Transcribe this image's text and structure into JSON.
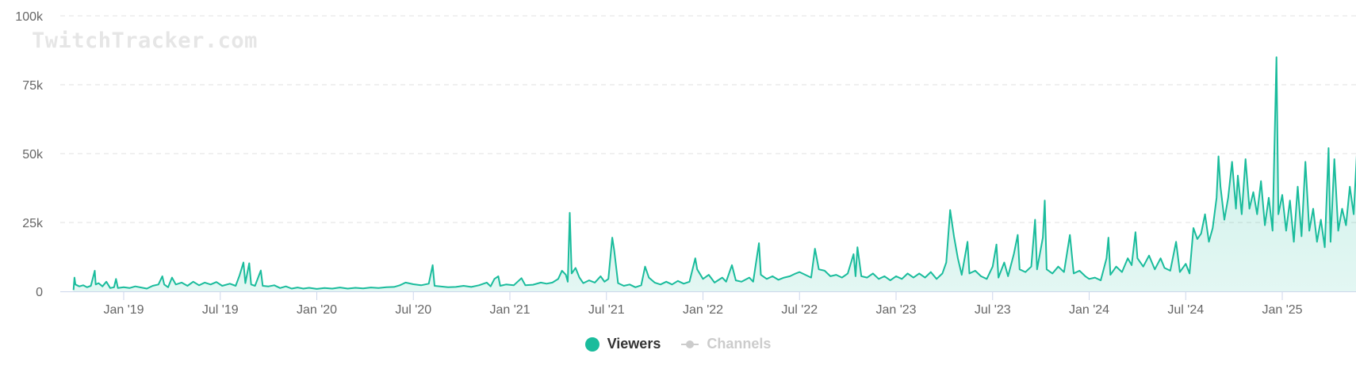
{
  "watermark": "TwitchTracker.com",
  "legend": {
    "items": [
      {
        "label": "Viewers",
        "color": "#1abc9c",
        "visible": true
      },
      {
        "label": "Channels",
        "color": "#cccccc",
        "visible": false
      }
    ]
  },
  "colors": {
    "line": "#1abc9c",
    "fill_top": "rgba(26,188,156,0.25)",
    "fill_bottom": "rgba(26,188,156,0.12)",
    "grid": "#e0e0e0",
    "axis": "#ccd6eb",
    "label": "#666666"
  },
  "chart_data": {
    "type": "area",
    "title": "",
    "xlabel": "",
    "ylabel": "",
    "ylim": [
      0,
      100000
    ],
    "y_ticks": [
      {
        "value": 0,
        "label": "0"
      },
      {
        "value": 25000,
        "label": "25k"
      },
      {
        "value": 50000,
        "label": "50k"
      },
      {
        "value": 75000,
        "label": "75k"
      },
      {
        "value": 100000,
        "label": "100k"
      }
    ],
    "x_ticks": [
      {
        "t": 2019.0,
        "label": "Jan '19"
      },
      {
        "t": 2019.5,
        "label": "Jul '19"
      },
      {
        "t": 2020.0,
        "label": "Jan '20"
      },
      {
        "t": 2020.5,
        "label": "Jul '20"
      },
      {
        "t": 2021.0,
        "label": "Jan '21"
      },
      {
        "t": 2021.5,
        "label": "Jul '21"
      },
      {
        "t": 2022.0,
        "label": "Jan '22"
      },
      {
        "t": 2022.5,
        "label": "Jul '22"
      },
      {
        "t": 2023.0,
        "label": "Jan '23"
      },
      {
        "t": 2023.5,
        "label": "Jul '23"
      },
      {
        "t": 2024.0,
        "label": "Jan '24"
      },
      {
        "t": 2024.5,
        "label": "Jul '24"
      },
      {
        "t": 2025.0,
        "label": "Jan '25"
      }
    ],
    "x_range": [
      2018.55,
      2025.4
    ],
    "grid": true,
    "legend_position": "bottom-center",
    "series": [
      {
        "name": "Viewers",
        "visible": true,
        "points": [
          [
            2018.74,
            500
          ],
          [
            2018.745,
            5000
          ],
          [
            2018.75,
            2500
          ],
          [
            2018.77,
            1800
          ],
          [
            2018.79,
            2200
          ],
          [
            2018.81,
            1500
          ],
          [
            2018.83,
            2000
          ],
          [
            2018.85,
            7500
          ],
          [
            2018.855,
            2500
          ],
          [
            2018.87,
            3000
          ],
          [
            2018.89,
            1800
          ],
          [
            2018.91,
            3500
          ],
          [
            2018.93,
            1200
          ],
          [
            2018.95,
            1500
          ],
          [
            2018.96,
            4500
          ],
          [
            2018.97,
            1200
          ],
          [
            2019.0,
            1500
          ],
          [
            2019.03,
            1200
          ],
          [
            2019.06,
            1800
          ],
          [
            2019.09,
            1400
          ],
          [
            2019.12,
            1000
          ],
          [
            2019.15,
            2000
          ],
          [
            2019.18,
            2500
          ],
          [
            2019.2,
            5500
          ],
          [
            2019.21,
            2500
          ],
          [
            2019.23,
            1500
          ],
          [
            2019.25,
            5000
          ],
          [
            2019.27,
            2500
          ],
          [
            2019.3,
            3200
          ],
          [
            2019.33,
            2000
          ],
          [
            2019.36,
            3500
          ],
          [
            2019.39,
            2200
          ],
          [
            2019.42,
            3200
          ],
          [
            2019.45,
            2500
          ],
          [
            2019.48,
            3400
          ],
          [
            2019.51,
            2000
          ],
          [
            2019.55,
            2800
          ],
          [
            2019.58,
            2000
          ],
          [
            2019.6,
            5800
          ],
          [
            2019.62,
            10500
          ],
          [
            2019.63,
            3000
          ],
          [
            2019.65,
            10200
          ],
          [
            2019.66,
            2500
          ],
          [
            2019.68,
            2000
          ],
          [
            2019.71,
            7600
          ],
          [
            2019.72,
            2000
          ],
          [
            2019.75,
            1800
          ],
          [
            2019.78,
            2200
          ],
          [
            2019.81,
            1200
          ],
          [
            2019.84,
            1800
          ],
          [
            2019.87,
            1000
          ],
          [
            2019.9,
            1400
          ],
          [
            2019.93,
            1000
          ],
          [
            2019.96,
            1300
          ],
          [
            2020.0,
            900
          ],
          [
            2020.04,
            1200
          ],
          [
            2020.08,
            1000
          ],
          [
            2020.12,
            1400
          ],
          [
            2020.16,
            1000
          ],
          [
            2020.2,
            1300
          ],
          [
            2020.24,
            1100
          ],
          [
            2020.28,
            1400
          ],
          [
            2020.32,
            1200
          ],
          [
            2020.36,
            1500
          ],
          [
            2020.4,
            1600
          ],
          [
            2020.43,
            2200
          ],
          [
            2020.46,
            3200
          ],
          [
            2020.5,
            2600
          ],
          [
            2020.54,
            2200
          ],
          [
            2020.58,
            2800
          ],
          [
            2020.6,
            9500
          ],
          [
            2020.61,
            2000
          ],
          [
            2020.64,
            1800
          ],
          [
            2020.68,
            1500
          ],
          [
            2020.72,
            1600
          ],
          [
            2020.76,
            2000
          ],
          [
            2020.8,
            1600
          ],
          [
            2020.84,
            2200
          ],
          [
            2020.88,
            3200
          ],
          [
            2020.9,
            1800
          ],
          [
            2020.92,
            4500
          ],
          [
            2020.94,
            5500
          ],
          [
            2020.95,
            2000
          ],
          [
            2020.98,
            2500
          ],
          [
            2021.02,
            2200
          ],
          [
            2021.06,
            4800
          ],
          [
            2021.08,
            2200
          ],
          [
            2021.12,
            2400
          ],
          [
            2021.16,
            3200
          ],
          [
            2021.19,
            2800
          ],
          [
            2021.22,
            3200
          ],
          [
            2021.25,
            4500
          ],
          [
            2021.27,
            7500
          ],
          [
            2021.29,
            6000
          ],
          [
            2021.3,
            3500
          ],
          [
            2021.31,
            28500
          ],
          [
            2021.32,
            6500
          ],
          [
            2021.34,
            8500
          ],
          [
            2021.36,
            5000
          ],
          [
            2021.38,
            3000
          ],
          [
            2021.41,
            4000
          ],
          [
            2021.44,
            3200
          ],
          [
            2021.47,
            5500
          ],
          [
            2021.49,
            3500
          ],
          [
            2021.51,
            4500
          ],
          [
            2021.53,
            19500
          ],
          [
            2021.54,
            15000
          ],
          [
            2021.56,
            3000
          ],
          [
            2021.59,
            2000
          ],
          [
            2021.62,
            2500
          ],
          [
            2021.65,
            1500
          ],
          [
            2021.68,
            2200
          ],
          [
            2021.7,
            9000
          ],
          [
            2021.72,
            5000
          ],
          [
            2021.75,
            3200
          ],
          [
            2021.78,
            2500
          ],
          [
            2021.81,
            3500
          ],
          [
            2021.84,
            2500
          ],
          [
            2021.87,
            3800
          ],
          [
            2021.9,
            2800
          ],
          [
            2021.93,
            3500
          ],
          [
            2021.96,
            12000
          ],
          [
            2021.97,
            8000
          ],
          [
            2022.0,
            4500
          ],
          [
            2022.03,
            6000
          ],
          [
            2022.06,
            3200
          ],
          [
            2022.1,
            5000
          ],
          [
            2022.12,
            3500
          ],
          [
            2022.15,
            9500
          ],
          [
            2022.17,
            4000
          ],
          [
            2022.2,
            3500
          ],
          [
            2022.24,
            5000
          ],
          [
            2022.26,
            3500
          ],
          [
            2022.29,
            17500
          ],
          [
            2022.3,
            6000
          ],
          [
            2022.33,
            4500
          ],
          [
            2022.36,
            5500
          ],
          [
            2022.39,
            4200
          ],
          [
            2022.42,
            5000
          ],
          [
            2022.45,
            5500
          ],
          [
            2022.48,
            6500
          ],
          [
            2022.5,
            7000
          ],
          [
            2022.53,
            6000
          ],
          [
            2022.56,
            5000
          ],
          [
            2022.58,
            15500
          ],
          [
            2022.6,
            8000
          ],
          [
            2022.63,
            7500
          ],
          [
            2022.66,
            5500
          ],
          [
            2022.69,
            6000
          ],
          [
            2022.72,
            5000
          ],
          [
            2022.75,
            6500
          ],
          [
            2022.78,
            13500
          ],
          [
            2022.79,
            5500
          ],
          [
            2022.8,
            16000
          ],
          [
            2022.82,
            5500
          ],
          [
            2022.85,
            5000
          ],
          [
            2022.88,
            6500
          ],
          [
            2022.91,
            4500
          ],
          [
            2022.94,
            5500
          ],
          [
            2022.97,
            4000
          ],
          [
            2023.0,
            5500
          ],
          [
            2023.03,
            4500
          ],
          [
            2023.06,
            6500
          ],
          [
            2023.09,
            5000
          ],
          [
            2023.12,
            6500
          ],
          [
            2023.15,
            5000
          ],
          [
            2023.18,
            7000
          ],
          [
            2023.21,
            4500
          ],
          [
            2023.24,
            6500
          ],
          [
            2023.26,
            10500
          ],
          [
            2023.28,
            29500
          ],
          [
            2023.3,
            20000
          ],
          [
            2023.32,
            12000
          ],
          [
            2023.34,
            6000
          ],
          [
            2023.37,
            18000
          ],
          [
            2023.38,
            6500
          ],
          [
            2023.41,
            7500
          ],
          [
            2023.44,
            5500
          ],
          [
            2023.47,
            4500
          ],
          [
            2023.5,
            9000
          ],
          [
            2023.52,
            17000
          ],
          [
            2023.53,
            5000
          ],
          [
            2023.56,
            10500
          ],
          [
            2023.58,
            5500
          ],
          [
            2023.61,
            13500
          ],
          [
            2023.63,
            20500
          ],
          [
            2023.64,
            8000
          ],
          [
            2023.67,
            7000
          ],
          [
            2023.7,
            9000
          ],
          [
            2023.72,
            26000
          ],
          [
            2023.73,
            8000
          ],
          [
            2023.76,
            19500
          ],
          [
            2023.77,
            33000
          ],
          [
            2023.78,
            8000
          ],
          [
            2023.81,
            6500
          ],
          [
            2023.84,
            9000
          ],
          [
            2023.87,
            7000
          ],
          [
            2023.9,
            20500
          ],
          [
            2023.92,
            6500
          ],
          [
            2023.95,
            7500
          ],
          [
            2023.98,
            5500
          ],
          [
            2024.0,
            4500
          ],
          [
            2024.03,
            5000
          ],
          [
            2024.06,
            4000
          ],
          [
            2024.09,
            12000
          ],
          [
            2024.1,
            19500
          ],
          [
            2024.11,
            6000
          ],
          [
            2024.14,
            9000
          ],
          [
            2024.17,
            7000
          ],
          [
            2024.2,
            12000
          ],
          [
            2024.22,
            9500
          ],
          [
            2024.24,
            21500
          ],
          [
            2024.25,
            12000
          ],
          [
            2024.28,
            9000
          ],
          [
            2024.31,
            13000
          ],
          [
            2024.34,
            8000
          ],
          [
            2024.37,
            12000
          ],
          [
            2024.39,
            8500
          ],
          [
            2024.42,
            7500
          ],
          [
            2024.45,
            18000
          ],
          [
            2024.47,
            7000
          ],
          [
            2024.5,
            10000
          ],
          [
            2024.52,
            6500
          ],
          [
            2024.54,
            23000
          ],
          [
            2024.56,
            19000
          ],
          [
            2024.58,
            21000
          ],
          [
            2024.6,
            28000
          ],
          [
            2024.62,
            18000
          ],
          [
            2024.64,
            23000
          ],
          [
            2024.66,
            34000
          ],
          [
            2024.67,
            49000
          ],
          [
            2024.68,
            38000
          ],
          [
            2024.7,
            26000
          ],
          [
            2024.72,
            34000
          ],
          [
            2024.74,
            47000
          ],
          [
            2024.76,
            30000
          ],
          [
            2024.77,
            42000
          ],
          [
            2024.79,
            28000
          ],
          [
            2024.81,
            48000
          ],
          [
            2024.83,
            30000
          ],
          [
            2024.85,
            36000
          ],
          [
            2024.87,
            28000
          ],
          [
            2024.89,
            40000
          ],
          [
            2024.91,
            24000
          ],
          [
            2024.93,
            34000
          ],
          [
            2024.95,
            22000
          ],
          [
            2024.97,
            85000
          ],
          [
            2024.98,
            28000
          ],
          [
            2025.0,
            35000
          ],
          [
            2025.02,
            22000
          ],
          [
            2025.04,
            33000
          ],
          [
            2025.06,
            18000
          ],
          [
            2025.08,
            38000
          ],
          [
            2025.1,
            20000
          ],
          [
            2025.12,
            47000
          ],
          [
            2025.14,
            22000
          ],
          [
            2025.16,
            30000
          ],
          [
            2025.18,
            18000
          ],
          [
            2025.2,
            26000
          ],
          [
            2025.22,
            16000
          ],
          [
            2025.24,
            52000
          ],
          [
            2025.25,
            18000
          ],
          [
            2025.27,
            48000
          ],
          [
            2025.29,
            22000
          ],
          [
            2025.31,
            30000
          ],
          [
            2025.33,
            24000
          ],
          [
            2025.35,
            38000
          ],
          [
            2025.37,
            28000
          ],
          [
            2025.39,
            55000
          ],
          [
            2025.4,
            30000
          ],
          [
            2025.41,
            50000
          ],
          [
            2025.42,
            28000
          ],
          [
            2025.43,
            43000
          ],
          [
            2025.44,
            31000
          ]
        ]
      },
      {
        "name": "Channels",
        "visible": false,
        "points": []
      }
    ]
  }
}
